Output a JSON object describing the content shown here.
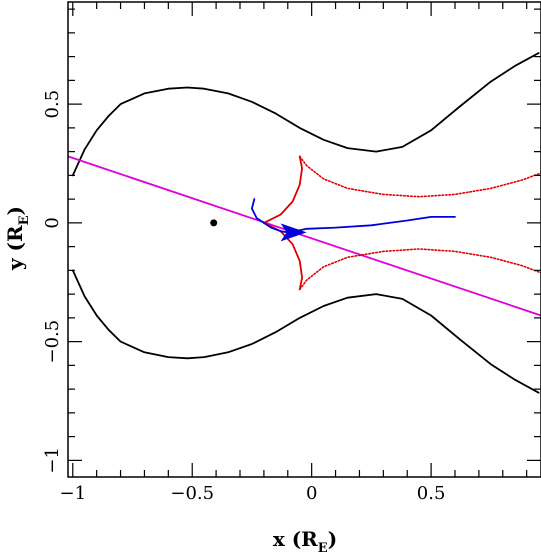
{
  "chart_data": {
    "type": "line",
    "xlabel": {
      "main": "x (R",
      "sub": "E",
      "close": ")"
    },
    "ylabel": {
      "main": "y (R",
      "sub": "E",
      "close": ")"
    },
    "xlim": [
      -1.02,
      0.96
    ],
    "ylim": [
      -1.07,
      0.93
    ],
    "x_ticks": [
      {
        "value": -1,
        "label": "−1"
      },
      {
        "value": -0.5,
        "label": "−0.5"
      },
      {
        "value": 0,
        "label": "0"
      },
      {
        "value": 0.5,
        "label": "0.5"
      }
    ],
    "y_ticks": [
      {
        "value": -1,
        "label": "−1"
      },
      {
        "value": -0.5,
        "label": "−0.5"
      },
      {
        "value": 0,
        "label": "0"
      },
      {
        "value": 0.5,
        "label": "0.5"
      }
    ],
    "grid": false,
    "series": [
      {
        "role": "black-upper",
        "color": "#000000",
        "style": "solid",
        "points": [
          [
            -1.0,
            0.2
          ],
          [
            -0.95,
            0.31
          ],
          [
            -0.9,
            0.39
          ],
          [
            -0.85,
            0.45
          ],
          [
            -0.8,
            0.5
          ],
          [
            -0.7,
            0.545
          ],
          [
            -0.6,
            0.565
          ],
          [
            -0.52,
            0.57
          ],
          [
            -0.45,
            0.565
          ],
          [
            -0.35,
            0.545
          ],
          [
            -0.25,
            0.51
          ],
          [
            -0.15,
            0.46
          ],
          [
            -0.05,
            0.4
          ],
          [
            0.05,
            0.35
          ],
          [
            0.15,
            0.315
          ],
          [
            0.27,
            0.3
          ],
          [
            0.38,
            0.32
          ],
          [
            0.5,
            0.39
          ],
          [
            0.62,
            0.49
          ],
          [
            0.75,
            0.595
          ],
          [
            0.85,
            0.66
          ],
          [
            0.95,
            0.715
          ]
        ]
      },
      {
        "role": "black-lower",
        "color": "#000000",
        "style": "solid",
        "points": [
          [
            -1.0,
            -0.2
          ],
          [
            -0.95,
            -0.31
          ],
          [
            -0.9,
            -0.39
          ],
          [
            -0.85,
            -0.45
          ],
          [
            -0.8,
            -0.5
          ],
          [
            -0.7,
            -0.545
          ],
          [
            -0.6,
            -0.565
          ],
          [
            -0.52,
            -0.57
          ],
          [
            -0.45,
            -0.565
          ],
          [
            -0.35,
            -0.545
          ],
          [
            -0.25,
            -0.51
          ],
          [
            -0.15,
            -0.46
          ],
          [
            -0.05,
            -0.4
          ],
          [
            0.05,
            -0.35
          ],
          [
            0.15,
            -0.315
          ],
          [
            0.27,
            -0.3
          ],
          [
            0.38,
            -0.32
          ],
          [
            0.5,
            -0.39
          ],
          [
            0.62,
            -0.49
          ],
          [
            0.75,
            -0.595
          ],
          [
            0.85,
            -0.66
          ],
          [
            0.95,
            -0.715
          ]
        ]
      },
      {
        "role": "magenta-line",
        "color": "#dd00dd",
        "style": "solid",
        "points": [
          [
            -1.02,
            0.28
          ],
          [
            0.96,
            -0.39
          ]
        ]
      },
      {
        "role": "red-upper-cusp",
        "color": "#e00000",
        "style": "solid",
        "points": [
          [
            -0.2,
            0.0
          ],
          [
            -0.13,
            0.035
          ],
          [
            -0.08,
            0.09
          ],
          [
            -0.05,
            0.16
          ],
          [
            -0.04,
            0.23
          ],
          [
            -0.05,
            0.28
          ]
        ]
      },
      {
        "role": "red-lower-cusp",
        "color": "#e00000",
        "style": "solid",
        "points": [
          [
            -0.2,
            0.0
          ],
          [
            -0.13,
            -0.035
          ],
          [
            -0.08,
            -0.09
          ],
          [
            -0.05,
            -0.16
          ],
          [
            -0.04,
            -0.23
          ],
          [
            -0.05,
            -0.28
          ]
        ]
      },
      {
        "role": "red-upper-dotted",
        "color": "#e00000",
        "style": "dotted",
        "points": [
          [
            -0.05,
            0.28
          ],
          [
            -0.02,
            0.24
          ],
          [
            0.05,
            0.185
          ],
          [
            0.15,
            0.145
          ],
          [
            0.3,
            0.12
          ],
          [
            0.45,
            0.11
          ],
          [
            0.6,
            0.12
          ],
          [
            0.75,
            0.145
          ],
          [
            0.88,
            0.18
          ],
          [
            0.96,
            0.21
          ]
        ]
      },
      {
        "role": "red-lower-dotted",
        "color": "#e00000",
        "style": "dotted",
        "points": [
          [
            -0.05,
            -0.28
          ],
          [
            -0.02,
            -0.24
          ],
          [
            0.05,
            -0.185
          ],
          [
            0.15,
            -0.145
          ],
          [
            0.3,
            -0.12
          ],
          [
            0.45,
            -0.11
          ],
          [
            0.6,
            -0.12
          ],
          [
            0.75,
            -0.145
          ],
          [
            0.88,
            -0.18
          ],
          [
            0.96,
            -0.21
          ]
        ]
      },
      {
        "role": "blue-track",
        "color": "#0000dd",
        "style": "solid",
        "points": [
          [
            -0.24,
            0.1
          ],
          [
            -0.25,
            0.06
          ],
          [
            -0.23,
            0.02
          ],
          [
            -0.2,
            0.0
          ],
          [
            -0.17,
            -0.02
          ],
          [
            -0.13,
            -0.035
          ],
          [
            -0.1,
            -0.04
          ],
          [
            -0.07,
            -0.035
          ],
          [
            -0.02,
            -0.025
          ],
          [
            0.1,
            -0.02
          ],
          [
            0.25,
            -0.01
          ],
          [
            0.4,
            0.01
          ],
          [
            0.5,
            0.025
          ],
          [
            0.6,
            0.025
          ]
        ]
      }
    ],
    "markers": [
      {
        "role": "central-dot",
        "color": "#000000",
        "x": -0.41,
        "y": 0.0
      },
      {
        "role": "blue-arrowhead",
        "color": "#0000dd",
        "x": -0.08,
        "y": -0.04
      }
    ]
  }
}
